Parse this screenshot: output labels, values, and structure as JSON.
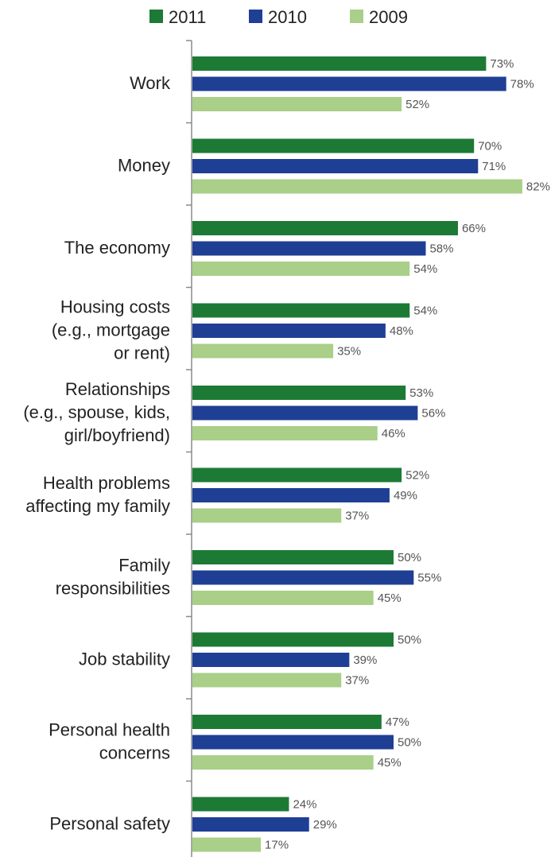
{
  "chart_data": {
    "type": "bar",
    "orientation": "horizontal",
    "categories": [
      [
        "Work"
      ],
      [
        "Money"
      ],
      [
        "The economy"
      ],
      [
        "Housing costs",
        "(e.g., mortgage",
        "or rent)"
      ],
      [
        "Relationships",
        "(e.g., spouse, kids,",
        "girl/boyfriend)"
      ],
      [
        "Health problems",
        "affecting my family"
      ],
      [
        "Family",
        "responsibilities"
      ],
      [
        "Job stability"
      ],
      [
        "Personal health",
        "concerns"
      ],
      [
        "Personal safety"
      ]
    ],
    "series": [
      {
        "name": "2011",
        "color": "#1d7a34",
        "values": [
          73,
          70,
          66,
          54,
          53,
          52,
          50,
          50,
          47,
          24
        ]
      },
      {
        "name": "2010",
        "color": "#1f3f95",
        "values": [
          78,
          71,
          58,
          48,
          56,
          49,
          55,
          39,
          50,
          29
        ]
      },
      {
        "name": "2009",
        "color": "#a9cf88",
        "values": [
          52,
          82,
          54,
          35,
          46,
          37,
          45,
          37,
          45,
          17
        ]
      }
    ],
    "value_suffix": "%",
    "xlim": [
      0,
      100
    ],
    "legend_position": "top",
    "grid": false
  }
}
